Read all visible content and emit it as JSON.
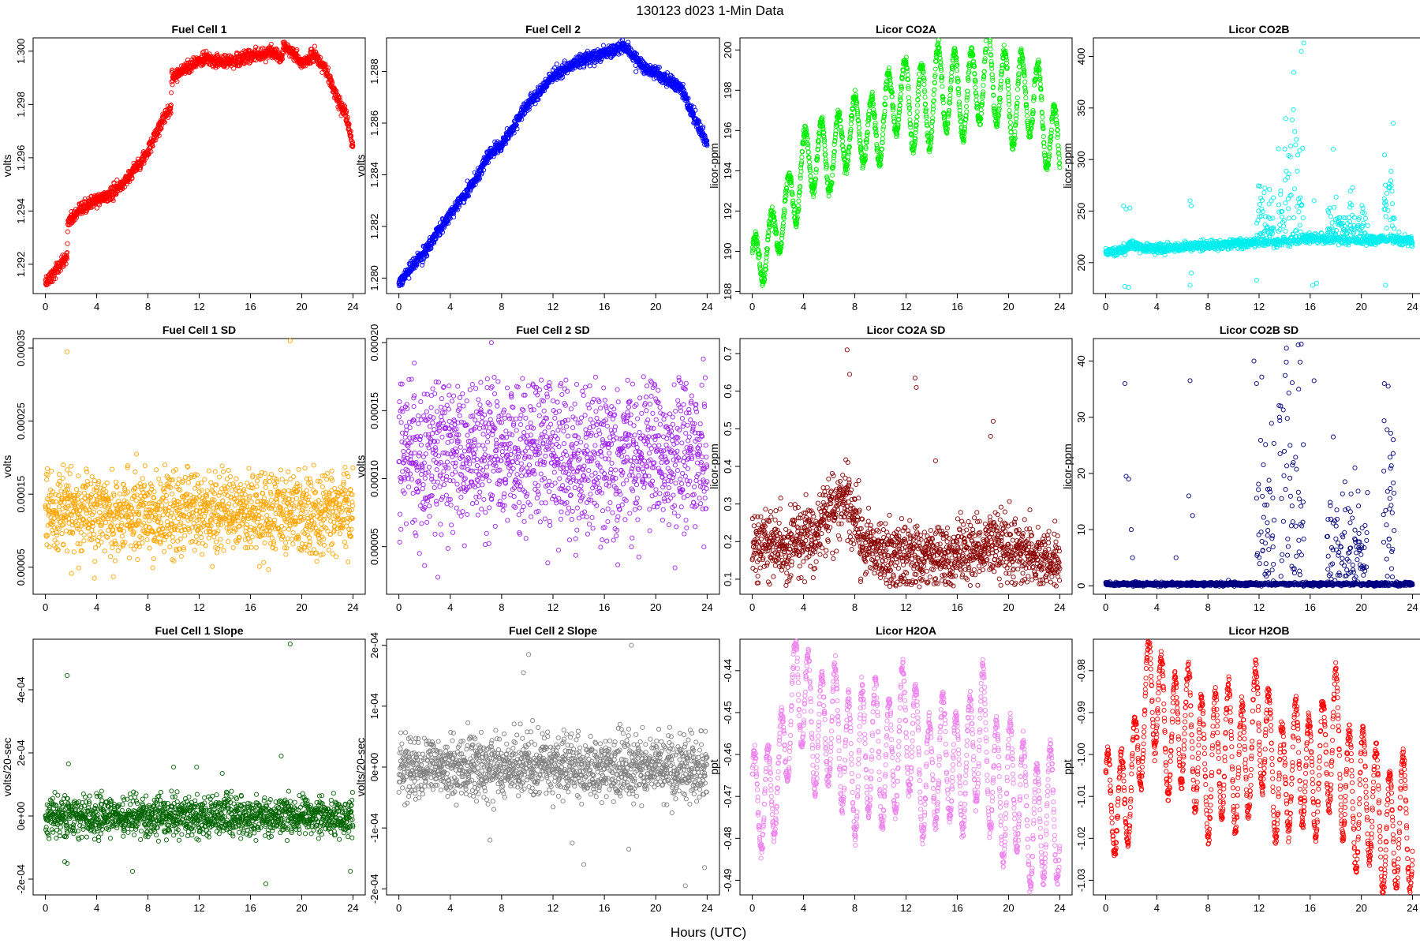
{
  "figure": {
    "suptitle": "130123    d023    1-Min Data",
    "xlabel": "Hours (UTC)",
    "x_ticks": [
      0,
      4,
      8,
      12,
      16,
      20,
      24
    ]
  },
  "chart_data": [
    {
      "type": "scatter",
      "title": "Fuel Cell 1",
      "ylabel": "volts",
      "color": "#ff0000",
      "xlim": [
        0,
        24
      ],
      "ylim": [
        1.2909,
        1.3005
      ],
      "y_ticks": [
        1.292,
        1.294,
        1.296,
        1.298,
        1.3
      ],
      "y_tick_labels": [
        "1.292",
        "1.294",
        "1.296",
        "1.298",
        "1.300"
      ],
      "x_nodes": [
        0,
        1.7,
        1.75,
        3.5,
        5,
        6,
        7,
        8,
        9.2,
        9.8,
        9.85,
        11,
        12.5,
        14,
        16,
        17.5,
        18.5,
        18.55,
        19,
        20,
        21,
        22,
        22.5,
        23.5,
        24
      ],
      "y_nodes": [
        1.2913,
        1.2923,
        1.2936,
        1.2943,
        1.2946,
        1.295,
        1.2956,
        1.2962,
        1.2975,
        1.2979,
        1.299,
        1.2994,
        1.2997,
        1.2996,
        1.2998,
        1.3,
        1.2997,
        1.3002,
        1.3001,
        1.2995,
        1.2999,
        1.2992,
        1.2985,
        1.2975,
        1.2964
      ],
      "jitter": 0.00012
    },
    {
      "type": "scatter",
      "title": "Fuel Cell 2",
      "ylabel": "volts",
      "color": "#0000ff",
      "xlim": [
        0,
        24
      ],
      "ylim": [
        1.2794,
        1.2893
      ],
      "y_ticks": [
        1.28,
        1.282,
        1.284,
        1.286,
        1.288
      ],
      "y_tick_labels": [
        "1.280",
        "1.282",
        "1.284",
        "1.286",
        "1.288"
      ],
      "x_nodes": [
        0,
        2,
        4,
        6,
        7,
        8,
        10,
        12,
        14,
        16,
        17.5,
        19,
        20.5,
        22,
        23,
        24
      ],
      "y_nodes": [
        1.2798,
        1.281,
        1.2825,
        1.2838,
        1.2848,
        1.2852,
        1.2867,
        1.2878,
        1.2884,
        1.2887,
        1.289,
        1.2882,
        1.2878,
        1.2873,
        1.2862,
        1.2852
      ],
      "jitter": 0.00012
    },
    {
      "type": "scatter",
      "title": "Licor CO2A",
      "ylabel": "licor-ppm",
      "color": "#00ee00",
      "xlim": [
        0,
        24
      ],
      "ylim": [
        187.9,
        200.6
      ],
      "y_ticks": [
        188,
        190,
        192,
        194,
        196,
        198,
        200
      ],
      "y_tick_labels": [
        "188",
        "190",
        "192",
        "194",
        "196",
        "198",
        "200"
      ],
      "x_nodes": [
        0,
        1,
        3,
        5,
        7,
        9,
        11,
        13,
        15,
        17,
        19,
        21,
        22.5,
        24
      ],
      "y_nodes": [
        189.3,
        189.6,
        193.0,
        194.6,
        195.5,
        196.0,
        197.2,
        197.6,
        197.6,
        198.3,
        198.3,
        197.8,
        196.8,
        195.2
      ],
      "osc_amp": [
        1.3,
        1.8,
        1.6,
        1.8,
        2.2,
        2.0,
        2.2,
        2.0
      ],
      "osc_period": 1.3,
      "jitter": 0.15
    },
    {
      "type": "scatter",
      "title": "Licor CO2B",
      "ylabel": "licor-ppm",
      "color": "#00eeee",
      "xlim": [
        0,
        24
      ],
      "ylim": [
        170,
        418
      ],
      "y_ticks": [
        200,
        250,
        300,
        350,
        400
      ],
      "y_tick_labels": [
        "200",
        "250",
        "300",
        "350",
        "400"
      ],
      "x_nodes": [
        0,
        1.5,
        2,
        3,
        6,
        8,
        11,
        14,
        16,
        20,
        22,
        24
      ],
      "y_nodes": [
        210,
        213,
        218,
        214,
        215,
        217,
        219,
        220,
        224,
        221,
        223,
        222
      ],
      "jitter": 2.2,
      "spike_windows": [
        [
          11.8,
          13.2,
          32
        ],
        [
          13.5,
          15.5,
          70
        ],
        [
          17.3,
          20.5,
          18
        ],
        [
          21.7,
          22.6,
          40
        ]
      ],
      "outliers": [
        [
          1.4,
          255
        ],
        [
          1.6,
          252
        ],
        [
          1.9,
          253
        ],
        [
          1.5,
          177
        ],
        [
          1.8,
          176
        ],
        [
          6.6,
          260
        ],
        [
          6.7,
          255
        ],
        [
          6.6,
          178
        ],
        [
          6.7,
          190
        ],
        [
          11.8,
          183
        ],
        [
          12.2,
          252
        ],
        [
          15.3,
          405
        ],
        [
          15.5,
          413
        ],
        [
          16.3,
          260
        ],
        [
          16.2,
          178
        ],
        [
          16.5,
          180
        ],
        [
          17.8,
          310
        ],
        [
          21.8,
          262
        ],
        [
          21.9,
          178
        ],
        [
          22.5,
          335
        ]
      ]
    },
    {
      "type": "scatter",
      "title": "Fuel Cell 1 SD",
      "ylabel": "volts",
      "color": "#ffa500",
      "xlim": [
        0,
        24
      ],
      "ylim": [
        1.3e-05,
        0.000363
      ],
      "y_ticks": [
        5e-05,
        0.00015,
        0.00025,
        0.00035
      ],
      "y_tick_labels": [
        "0.00005",
        "0.00015",
        "0.00025",
        "0.00035"
      ],
      "x_nodes": [
        0,
        24
      ],
      "y_nodes": [
        0.000125,
        0.000125
      ],
      "jitter": 2.8e-05,
      "clip": [
        3e-05,
        0.00019
      ],
      "outliers": [
        [
          1.7,
          0.000345
        ],
        [
          19.1,
          0.00036
        ],
        [
          7.1,
          0.000205
        ],
        [
          1.4,
          0.00019
        ]
      ]
    },
    {
      "type": "scatter",
      "title": "Fuel Cell 2 SD",
      "ylabel": "volts",
      "color": "#a020f0",
      "xlim": [
        0,
        24
      ],
      "ylim": [
        1.5e-05,
        0.000203
      ],
      "y_ticks": [
        5e-05,
        0.0001,
        0.00015,
        0.0002
      ],
      "y_tick_labels": [
        "0.00005",
        "0.00010",
        "0.00015",
        "0.00020"
      ],
      "x_nodes": [
        0,
        24
      ],
      "y_nodes": [
        0.000118,
        0.000118
      ],
      "jitter": 2.8e-05,
      "clip": [
        2e-05,
        0.000175
      ],
      "outliers": [
        [
          7.2,
          0.0002
        ],
        [
          1.2,
          0.000185
        ],
        [
          23.7,
          0.000188
        ]
      ]
    },
    {
      "type": "scatter",
      "title": "Licor CO2A SD",
      "ylabel": "licor-ppm",
      "color": "#8b0000",
      "xlim": [
        0,
        24
      ],
      "ylim": [
        0.06,
        0.74
      ],
      "y_ticks": [
        0.1,
        0.2,
        0.3,
        0.4,
        0.5,
        0.6,
        0.7
      ],
      "y_tick_labels": [
        "0.1",
        "0.2",
        "0.3",
        "0.4",
        "0.5",
        "0.6",
        "0.7"
      ],
      "x_nodes": [
        0,
        3,
        5,
        6.5,
        7.5,
        8.5,
        12,
        16,
        19,
        20,
        24
      ],
      "y_nodes": [
        0.2,
        0.19,
        0.22,
        0.3,
        0.32,
        0.19,
        0.16,
        0.16,
        0.2,
        0.17,
        0.15
      ],
      "jitter": 0.045,
      "clip": [
        0.08,
        0.55
      ],
      "outliers": [
        [
          7.4,
          0.71
        ],
        [
          7.6,
          0.645
        ],
        [
          12.7,
          0.635
        ],
        [
          12.8,
          0.61
        ],
        [
          14.3,
          0.415
        ],
        [
          18.8,
          0.52
        ],
        [
          18.6,
          0.48
        ]
      ]
    },
    {
      "type": "scatter",
      "title": "Licor CO2B SD",
      "ylabel": "licor-ppm",
      "color": "#000080",
      "xlim": [
        0,
        24
      ],
      "ylim": [
        -1.5,
        44
      ],
      "y_ticks": [
        0,
        10,
        20,
        30,
        40
      ],
      "y_tick_labels": [
        "0",
        "10",
        "20",
        "30",
        "40"
      ],
      "x_nodes": [
        0,
        24
      ],
      "y_nodes": [
        0.3,
        0.3
      ],
      "jitter": 0.15,
      "spike_windows": [
        [
          11.8,
          13.2,
          14
        ],
        [
          13.5,
          15.5,
          26
        ],
        [
          17.3,
          20.5,
          8
        ],
        [
          21.7,
          22.6,
          16
        ]
      ],
      "outliers": [
        [
          1.5,
          36
        ],
        [
          1.6,
          19.5
        ],
        [
          1.8,
          19
        ],
        [
          2.0,
          10
        ],
        [
          2.1,
          5
        ],
        [
          5.5,
          5
        ],
        [
          6.5,
          16
        ],
        [
          6.6,
          36.5
        ],
        [
          6.8,
          12.5
        ],
        [
          11.6,
          40
        ],
        [
          11.8,
          36
        ],
        [
          15.3,
          43
        ],
        [
          15.1,
          35
        ],
        [
          16.3,
          36.5
        ],
        [
          17.8,
          26.5
        ],
        [
          19.5,
          21
        ],
        [
          21.8,
          36
        ],
        [
          22.1,
          35.5
        ],
        [
          22.5,
          26
        ]
      ]
    },
    {
      "type": "scatter",
      "title": "Fuel Cell 1 Slope",
      "ylabel": "volts/20-sec",
      "color": "#006400",
      "xlim": [
        0,
        24
      ],
      "ylim": [
        -0.00025,
        0.00056
      ],
      "y_ticks": [
        -0.0002,
        0,
        0.0002,
        0.0004
      ],
      "y_tick_labels": [
        "-2e-04",
        "0e+00",
        "2e-04",
        "4e-04"
      ],
      "x_nodes": [
        0,
        24
      ],
      "y_nodes": [
        0.0,
        0.0
      ],
      "jitter": 3e-05,
      "clip": [
        -8e-05,
        8e-05
      ],
      "outliers": [
        [
          1.7,
          0.000445
        ],
        [
          19.1,
          0.000545
        ],
        [
          1.8,
          0.000165
        ],
        [
          1.7,
          -0.00015
        ],
        [
          1.5,
          -0.000145
        ],
        [
          6.8,
          -0.000175
        ],
        [
          17.2,
          -0.000215
        ],
        [
          23.8,
          -0.000175
        ],
        [
          18.4,
          0.00019
        ],
        [
          10,
          0.000155
        ],
        [
          11.8,
          0.000155
        ],
        [
          13.8,
          0.000135
        ]
      ]
    },
    {
      "type": "scatter",
      "title": "Fuel Cell 2 Slope",
      "ylabel": "volts/20-sec",
      "color": "#808080",
      "xlim": [
        0,
        24
      ],
      "ylim": [
        -0.00021,
        0.00021
      ],
      "y_ticks": [
        -0.0002,
        -0.0001,
        0,
        0.0001,
        0.0002
      ],
      "y_tick_labels": [
        "-2e-04",
        "-1e-04",
        "0e+00",
        "1e-04",
        "2e-04"
      ],
      "x_nodes": [
        0,
        24
      ],
      "y_nodes": [
        0.0,
        0.0
      ],
      "jitter": 2.5e-05,
      "clip": [
        -0.0001,
        0.0001
      ],
      "outliers": [
        [
          10.1,
          0.000185
        ],
        [
          18.1,
          0.0002
        ],
        [
          9.7,
          0.000155
        ],
        [
          22.3,
          -0.000195
        ],
        [
          23.8,
          -0.000165
        ],
        [
          14.4,
          -0.00016
        ],
        [
          13.5,
          -0.000125
        ],
        [
          7.1,
          -0.00012
        ],
        [
          17.9,
          -0.000135
        ]
      ]
    },
    {
      "type": "scatter",
      "title": "Licor H2OA",
      "ylabel": "ppt",
      "color": "#ee82ee",
      "xlim": [
        0,
        24
      ],
      "ylim": [
        -0.4935,
        -0.4325
      ],
      "y_ticks": [
        -0.49,
        -0.48,
        -0.47,
        -0.46,
        -0.45,
        -0.44
      ],
      "y_tick_labels": [
        "-0.49",
        "-0.48",
        "-0.47",
        "-0.46",
        "-0.45",
        "-0.44"
      ],
      "x_nodes": [
        0,
        1,
        2,
        3.5,
        5,
        7,
        9,
        12,
        14,
        16,
        18,
        20,
        22,
        24
      ],
      "y_nodes": [
        -0.472,
        -0.474,
        -0.462,
        -0.446,
        -0.452,
        -0.458,
        -0.462,
        -0.456,
        -0.464,
        -0.462,
        -0.458,
        -0.47,
        -0.474,
        -0.478
      ],
      "osc_amp": [
        0.012,
        0.014,
        0.016,
        0.015,
        0.014,
        0.016,
        0.015
      ],
      "osc_period": 1.05,
      "jitter": 0.001
    },
    {
      "type": "scatter",
      "title": "Licor H2OB",
      "ylabel": "ppt",
      "color": "#ff0000",
      "xlim": [
        0,
        24
      ],
      "ylim": [
        -1.0335,
        -0.9725
      ],
      "y_ticks": [
        -1.03,
        -1.02,
        -1.01,
        -1.0,
        -0.99,
        -0.98
      ],
      "y_tick_labels": [
        "-1.03",
        "-1.02",
        "-1.01",
        "-1.00",
        "-0.99",
        "-0.98"
      ],
      "x_nodes": [
        0,
        1,
        2,
        3.5,
        5,
        7,
        9,
        12,
        14,
        16,
        18,
        20,
        22,
        24
      ],
      "y_nodes": [
        -1.012,
        -1.016,
        -1.004,
        -0.986,
        -0.993,
        -0.998,
        -1.003,
        -0.996,
        -1.006,
        -1.003,
        -0.999,
        -1.012,
        -1.016,
        -1.02
      ],
      "osc_amp": [
        0.012,
        0.014,
        0.016,
        0.015,
        0.014,
        0.016,
        0.015
      ],
      "osc_period": 1.05,
      "jitter": 0.001
    }
  ]
}
